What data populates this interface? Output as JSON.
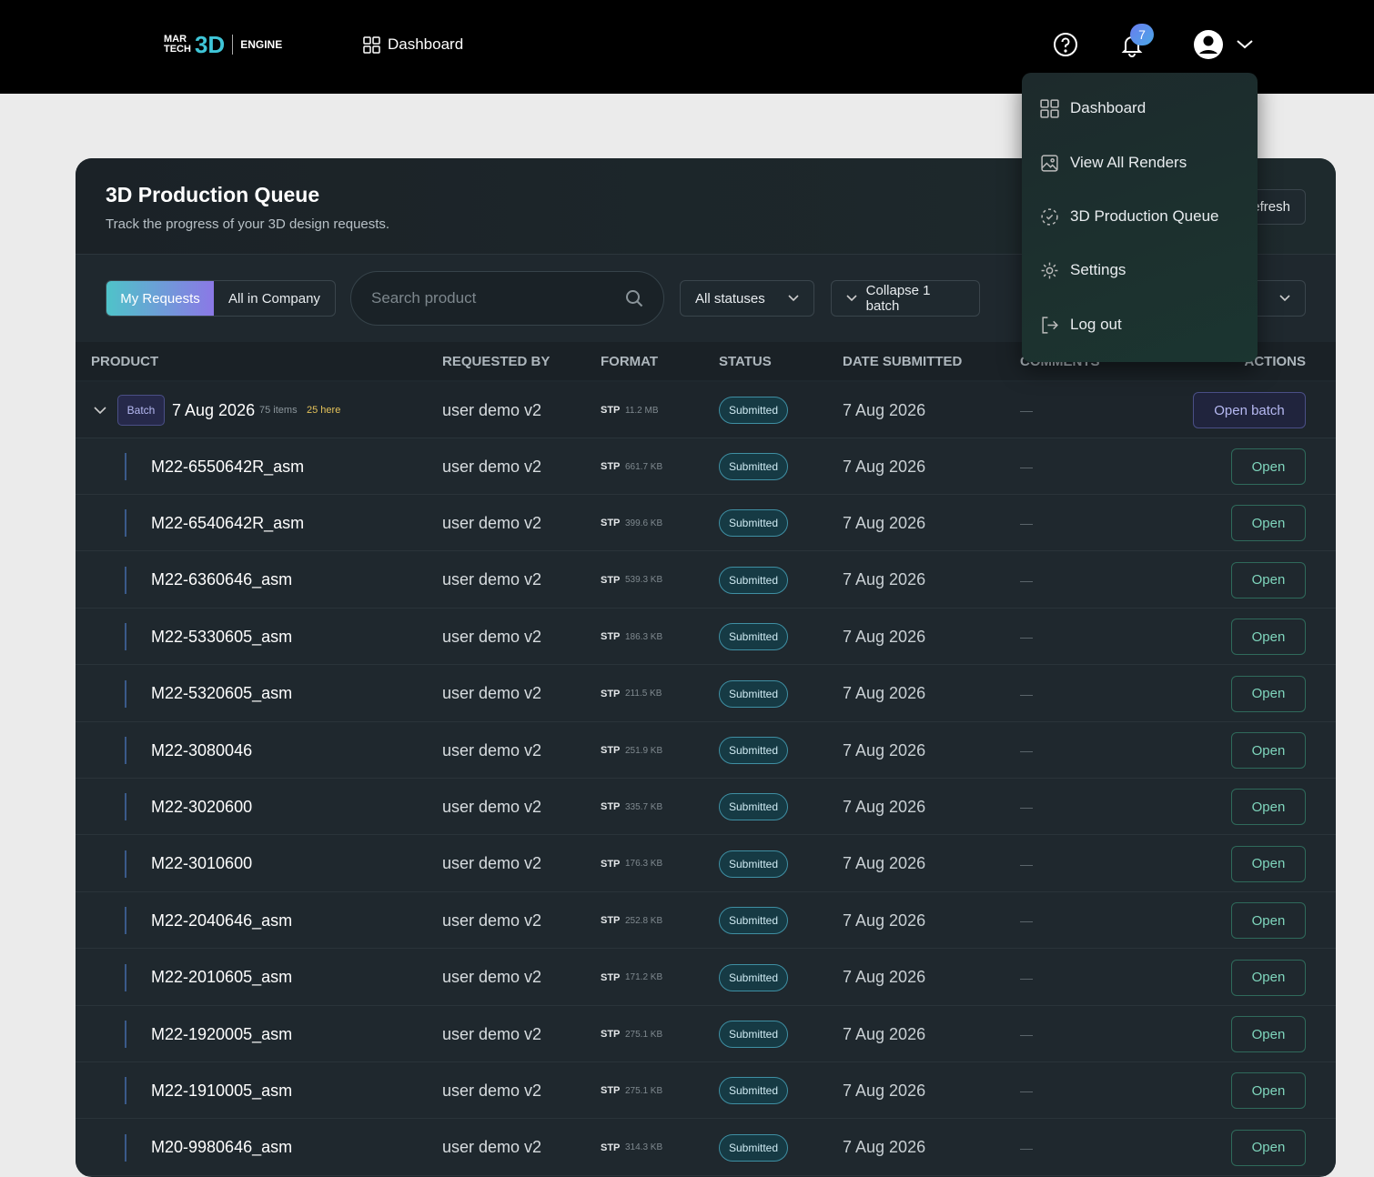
{
  "header": {
    "logo": {
      "line1": "MAR",
      "line2": "TECH",
      "mark": "3D",
      "product": "ENGINE"
    },
    "nav": "Dashboard",
    "notification_count": 7
  },
  "menu": [
    "Dashboard",
    "View All Renders",
    "3D Production Queue",
    "Settings",
    "Log out"
  ],
  "page": {
    "title": "3D Production Queue",
    "subtitle": "Track the progress of your 3D design requests.",
    "refresh": "Refresh"
  },
  "filters": {
    "tabs": [
      "My Requests",
      "All in Company"
    ],
    "search_placeholder": "Search product",
    "status_filter": "All statuses",
    "collapse": "Collapse 1 batch"
  },
  "table": {
    "columns": [
      "PRODUCT",
      "REQUESTED BY",
      "FORMAT",
      "STATUS",
      "DATE SUBMITTED",
      "COMMENTS",
      "ACTIONS"
    ],
    "batch": {
      "badge": "Batch",
      "date": "7 Aug 2026",
      "items": "75 items",
      "here": "25 here",
      "requested_by": "user demo v2",
      "format": "STP",
      "size": "11.2 MB",
      "status": "Submitted",
      "submitted": "7 Aug 2026",
      "comments": "—",
      "action": "Open batch"
    },
    "rows": [
      {
        "product": "M22-6550642R_asm",
        "requested_by": "user demo v2",
        "format": "STP",
        "size": "661.7 KB",
        "status": "Submitted",
        "submitted": "7 Aug 2026",
        "comments": "—",
        "action": "Open"
      },
      {
        "product": "M22-6540642R_asm",
        "requested_by": "user demo v2",
        "format": "STP",
        "size": "399.6 KB",
        "status": "Submitted",
        "submitted": "7 Aug 2026",
        "comments": "—",
        "action": "Open"
      },
      {
        "product": "M22-6360646_asm",
        "requested_by": "user demo v2",
        "format": "STP",
        "size": "539.3 KB",
        "status": "Submitted",
        "submitted": "7 Aug 2026",
        "comments": "—",
        "action": "Open"
      },
      {
        "product": "M22-5330605_asm",
        "requested_by": "user demo v2",
        "format": "STP",
        "size": "186.3 KB",
        "status": "Submitted",
        "submitted": "7 Aug 2026",
        "comments": "—",
        "action": "Open"
      },
      {
        "product": "M22-5320605_asm",
        "requested_by": "user demo v2",
        "format": "STP",
        "size": "211.5 KB",
        "status": "Submitted",
        "submitted": "7 Aug 2026",
        "comments": "—",
        "action": "Open"
      },
      {
        "product": "M22-3080046",
        "requested_by": "user demo v2",
        "format": "STP",
        "size": "251.9 KB",
        "status": "Submitted",
        "submitted": "7 Aug 2026",
        "comments": "—",
        "action": "Open"
      },
      {
        "product": "M22-3020600",
        "requested_by": "user demo v2",
        "format": "STP",
        "size": "335.7 KB",
        "status": "Submitted",
        "submitted": "7 Aug 2026",
        "comments": "—",
        "action": "Open"
      },
      {
        "product": "M22-3010600",
        "requested_by": "user demo v2",
        "format": "STP",
        "size": "176.3 KB",
        "status": "Submitted",
        "submitted": "7 Aug 2026",
        "comments": "—",
        "action": "Open"
      },
      {
        "product": "M22-2040646_asm",
        "requested_by": "user demo v2",
        "format": "STP",
        "size": "252.8 KB",
        "status": "Submitted",
        "submitted": "7 Aug 2026",
        "comments": "—",
        "action": "Open"
      },
      {
        "product": "M22-2010605_asm",
        "requested_by": "user demo v2",
        "format": "STP",
        "size": "171.2 KB",
        "status": "Submitted",
        "submitted": "7 Aug 2026",
        "comments": "—",
        "action": "Open"
      },
      {
        "product": "M22-1920005_asm",
        "requested_by": "user demo v2",
        "format": "STP",
        "size": "275.1 KB",
        "status": "Submitted",
        "submitted": "7 Aug 2026",
        "comments": "—",
        "action": "Open"
      },
      {
        "product": "M22-1910005_asm",
        "requested_by": "user demo v2",
        "format": "STP",
        "size": "275.1 KB",
        "status": "Submitted",
        "submitted": "7 Aug 2026",
        "comments": "—",
        "action": "Open"
      },
      {
        "product": "M20-9980646_asm",
        "requested_by": "user demo v2",
        "format": "STP",
        "size": "314.3 KB",
        "status": "Submitted",
        "submitted": "7 Aug 2026",
        "comments": "—",
        "action": "Open"
      }
    ]
  }
}
